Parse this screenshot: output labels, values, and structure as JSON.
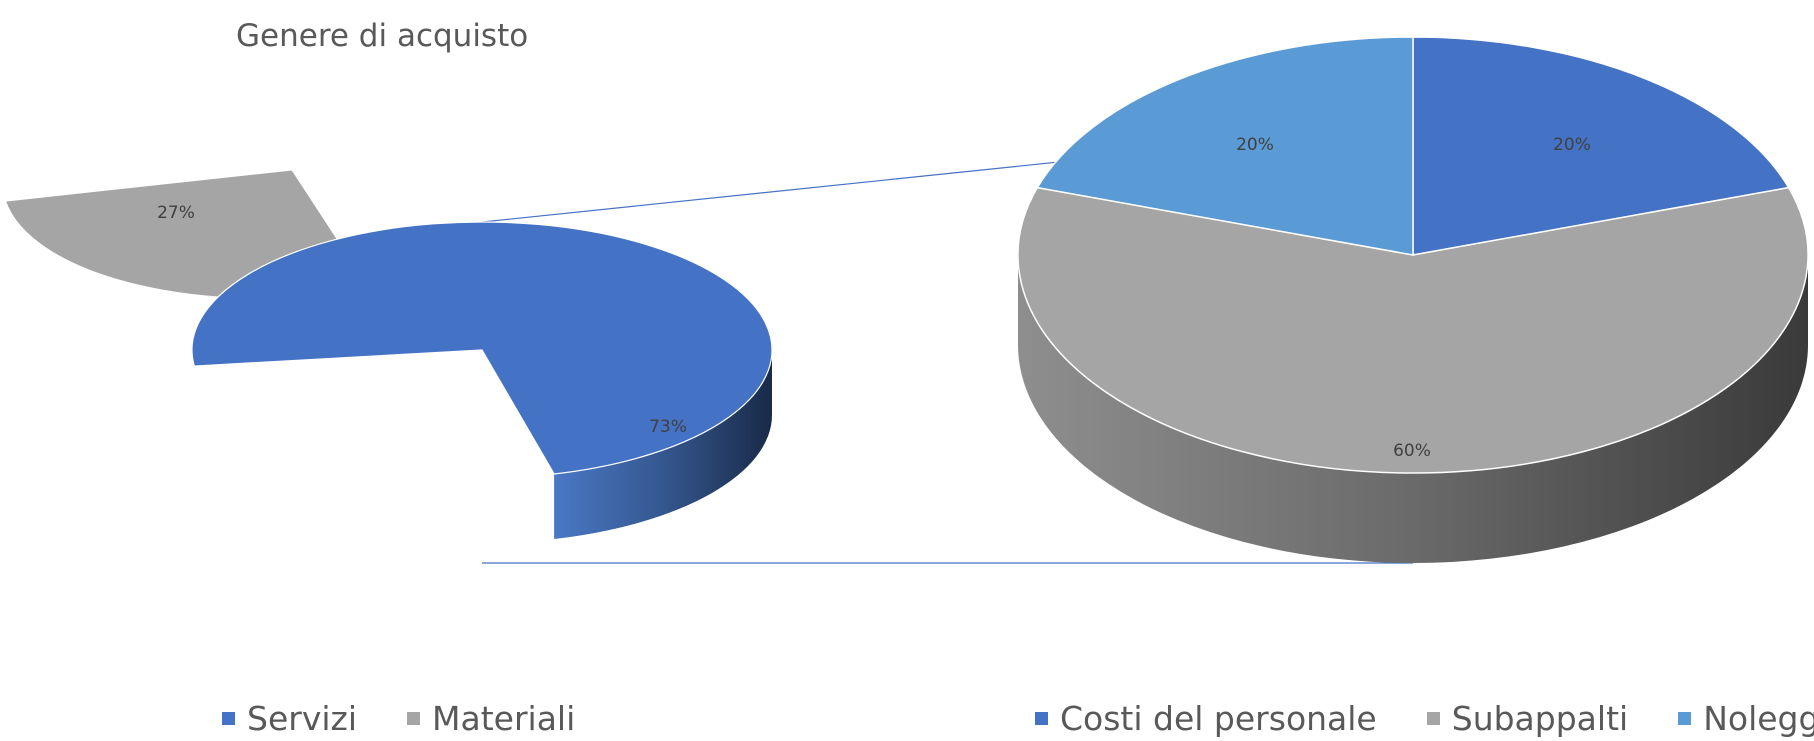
{
  "chart_data": [
    {
      "type": "pie",
      "subtype": "pie-of-pie-3d",
      "title": "Genere di acquisto",
      "slices": [
        {
          "name": "Servizi",
          "value": 73,
          "label": "73%",
          "color": "#4472C4"
        },
        {
          "name": "Materiali",
          "value": 27,
          "label": "27%",
          "color": "#A5A5A5"
        }
      ],
      "legend": {
        "position": "bottom",
        "entries": [
          "Servizi",
          "Materiali"
        ]
      }
    },
    {
      "type": "pie",
      "subtype": "secondary-pie-3d",
      "breakdown_of": "Servizi",
      "slices": [
        {
          "name": "Costi del personale",
          "value": 20,
          "label": "20%",
          "color": "#4472C4"
        },
        {
          "name": "Subappalti",
          "value": 60,
          "label": "60%",
          "color": "#A5A5A5"
        },
        {
          "name": "Noleggi",
          "value": 20,
          "label": "20%",
          "color": "#5B9BD5"
        }
      ],
      "legend": {
        "position": "bottom",
        "entries": [
          "Costi del personale",
          "Subappalti",
          "Noleggi"
        ]
      }
    }
  ],
  "legend_main": [
    {
      "label": "Servizi",
      "color": "#4472C4"
    },
    {
      "label": "Materiali",
      "color": "#A5A5A5"
    }
  ],
  "legend_secondary": [
    {
      "label": "Costi del personale",
      "color": "#4472C4"
    },
    {
      "label": "Subappalti",
      "color": "#A5A5A5"
    },
    {
      "label": "Noleggi",
      "color": "#5B9BD5"
    }
  ]
}
